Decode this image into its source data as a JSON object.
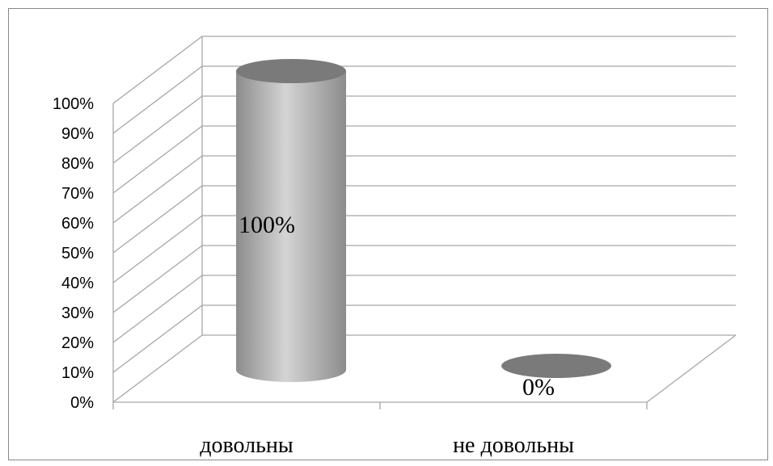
{
  "chart_data": {
    "type": "bar",
    "style": "3d-cylinder",
    "categories": [
      "довольны",
      "не довольны"
    ],
    "values": [
      100,
      0
    ],
    "data_labels": [
      "100%",
      "0%"
    ],
    "yticks": [
      "0%",
      "10%",
      "20%",
      "30%",
      "40%",
      "50%",
      "60%",
      "70%",
      "80%",
      "90%",
      "100%"
    ],
    "ylim": [
      0,
      100
    ],
    "grid": true,
    "legend": "none",
    "colors": {
      "bar": "#8c8c8c",
      "bar_light": "#d4d4d4",
      "bar_top": "#7a7a7a",
      "grid": "#a6a6a6"
    }
  }
}
